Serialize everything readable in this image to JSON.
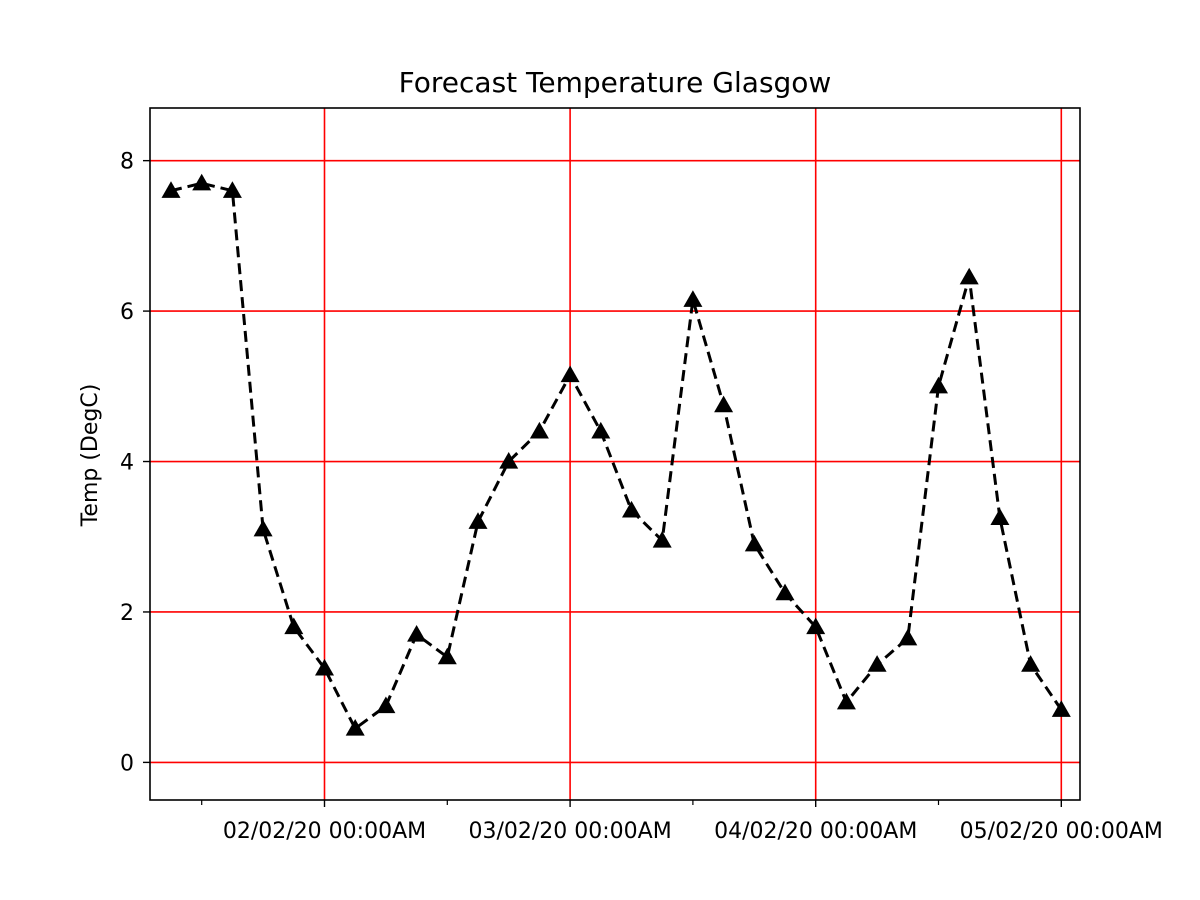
{
  "chart_data": {
    "type": "line",
    "title": "Forecast Temperature Glasgow",
    "xlabel": "",
    "ylabel": "Temp (DegC)",
    "x_tick_labels": [
      "02/02/20 00:00AM",
      "03/02/20 00:00AM",
      "04/02/20 00:00AM",
      "05/02/20 00:00AM"
    ],
    "y_ticks": [
      0,
      2,
      4,
      6,
      8
    ],
    "ylim": [
      -0.5,
      8.7
    ],
    "grid": true,
    "grid_color": "#ff0000",
    "line_color": "#000000",
    "line_style": "dashed",
    "marker": "triangle-up",
    "series": [
      {
        "x": [
          "01/02/20 09:00",
          "01/02/20 12:00",
          "01/02/20 15:00",
          "01/02/20 18:00",
          "01/02/20 21:00",
          "02/02/20 00:00",
          "02/02/20 03:00",
          "02/02/20 06:00",
          "02/02/20 09:00",
          "02/02/20 12:00",
          "02/02/20 15:00",
          "02/02/20 18:00",
          "02/02/20 21:00",
          "03/02/20 00:00",
          "03/02/20 03:00",
          "03/02/20 06:00",
          "03/02/20 09:00",
          "03/02/20 12:00",
          "03/02/20 15:00",
          "03/02/20 18:00",
          "03/02/20 21:00",
          "04/02/20 00:00",
          "04/02/20 03:00",
          "04/02/20 06:00",
          "04/02/20 09:00",
          "04/02/20 12:00",
          "04/02/20 15:00",
          "04/02/20 18:00",
          "04/02/20 21:00",
          "05/02/20 00:00"
        ],
        "values": [
          7.6,
          7.7,
          7.6,
          3.1,
          1.8,
          1.25,
          0.45,
          0.75,
          1.7,
          1.4,
          3.2,
          4.0,
          4.4,
          5.15,
          4.4,
          3.35,
          2.95,
          6.15,
          4.75,
          2.9,
          2.25,
          1.8,
          0.8,
          1.3,
          1.65,
          5.0,
          6.45,
          3.25,
          1.3,
          0.7
        ]
      }
    ]
  }
}
